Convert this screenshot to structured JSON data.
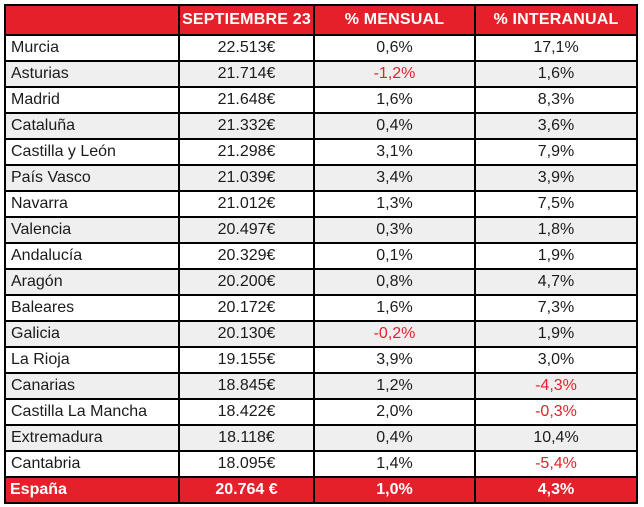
{
  "header": {
    "region": "",
    "price": "SEPTIEMBRE 23",
    "monthly": "% MENSUAL",
    "yearly": "% INTERANUAL"
  },
  "rows": [
    {
      "region": "Murcia",
      "price": "22.513€",
      "monthly": "0,6%",
      "yearly": "17,1%"
    },
    {
      "region": "Asturias",
      "price": "21.714€",
      "monthly": "-1,2%",
      "yearly": "1,6%"
    },
    {
      "region": "Madrid",
      "price": "21.648€",
      "monthly": "1,6%",
      "yearly": "8,3%"
    },
    {
      "region": "Cataluña",
      "price": "21.332€",
      "monthly": "0,4%",
      "yearly": "3,6%"
    },
    {
      "region": "Castilla y León",
      "price": "21.298€",
      "monthly": "3,1%",
      "yearly": "7,9%"
    },
    {
      "region": "País Vasco",
      "price": "21.039€",
      "monthly": "3,4%",
      "yearly": "3,9%"
    },
    {
      "region": "Navarra",
      "price": "21.012€",
      "monthly": "1,3%",
      "yearly": "7,5%"
    },
    {
      "region": "Valencia",
      "price": "20.497€",
      "monthly": "0,3%",
      "yearly": "1,8%"
    },
    {
      "region": "Andalucía",
      "price": "20.329€",
      "monthly": "0,1%",
      "yearly": "1,9%"
    },
    {
      "region": "Aragón",
      "price": "20.200€",
      "monthly": "0,8%",
      "yearly": "4,7%"
    },
    {
      "region": "Baleares",
      "price": "20.172€",
      "monthly": "1,6%",
      "yearly": "7,3%"
    },
    {
      "region": "Galicia",
      "price": "20.130€",
      "monthly": "-0,2%",
      "yearly": "1,9%"
    },
    {
      "region": "La Rioja",
      "price": "19.155€",
      "monthly": "3,9%",
      "yearly": "3,0%"
    },
    {
      "region": "Canarias",
      "price": "18.845€",
      "monthly": "1,2%",
      "yearly": "-4,3%"
    },
    {
      "region": "Castilla La Mancha",
      "price": "18.422€",
      "monthly": "2,0%",
      "yearly": "-0,3%"
    },
    {
      "region": "Extremadura",
      "price": "18.118€",
      "monthly": "0,4%",
      "yearly": "10,4%"
    },
    {
      "region": "Cantabria",
      "price": "18.095€",
      "monthly": "1,4%",
      "yearly": "-5,4%"
    }
  ],
  "total": {
    "region": "España",
    "price": "20.764 €",
    "monthly": "1,0%",
    "yearly": "4,3%"
  },
  "colors": {
    "header_bg": "#e5202a",
    "negative": "#e0232c",
    "row_shade": "#efefef"
  }
}
